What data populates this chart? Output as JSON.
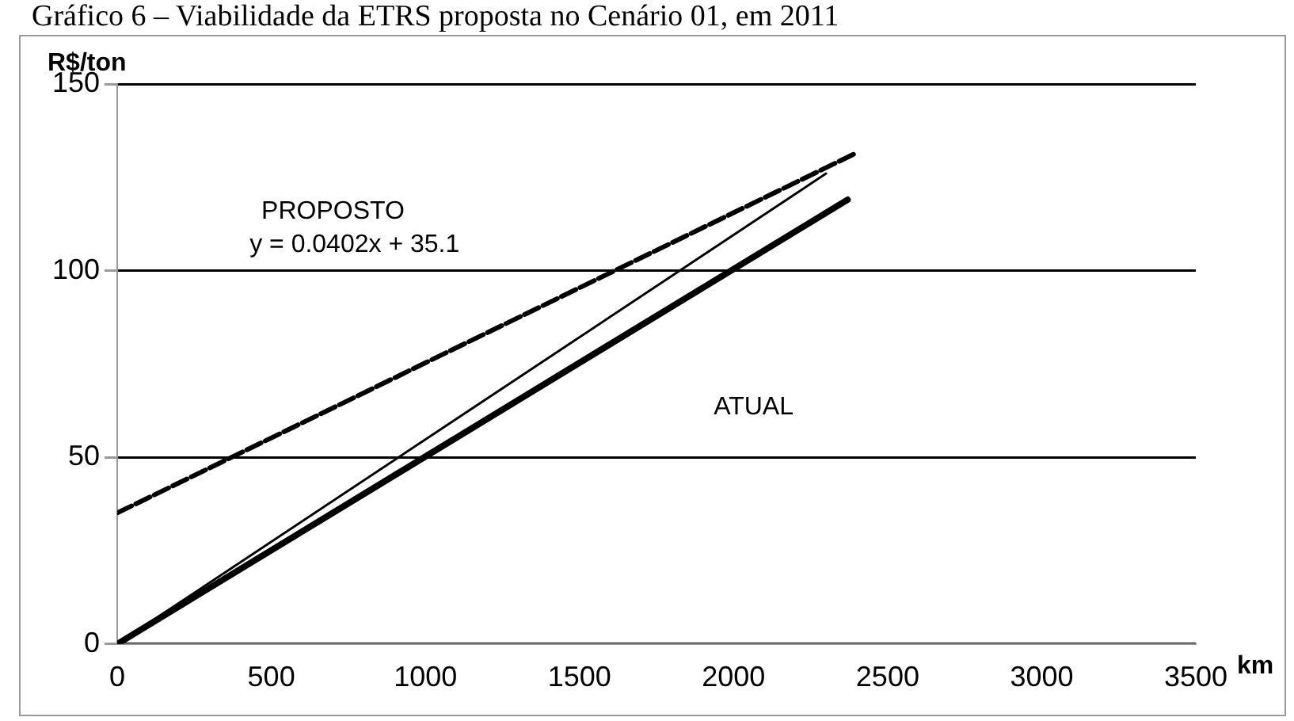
{
  "chart_data": {
    "type": "line",
    "title": "Gráfico 6 – Viabilidade da ETRS proposta no Cenário 01, em 2011",
    "xlabel": "km",
    "ylabel": "R$/ton",
    "series": [
      {
        "color": "#000000",
        "x": [
          0,
          2400
        ],
        "values": [
          35.1,
          131.6
        ],
        "line_style": "dashed"
      },
      {
        "color": "#000000",
        "x": [
          0,
          2300
        ],
        "values": [
          0,
          126
        ]
      },
      {
        "color": "#000000",
        "x": [
          0,
          2370
        ],
        "values": [
          0,
          119
        ]
      }
    ],
    "xlim": [
      0,
      3500
    ],
    "xticks": [
      0,
      500,
      1000,
      1500,
      2000,
      2500,
      3000,
      3500
    ],
    "ylim": [
      0,
      150
    ],
    "yticks": [
      0,
      50,
      100,
      150
    ],
    "grid": "y",
    "legend": false,
    "marker": "none",
    "annotations": [
      "PROPOSTO",
      "y = 0.0402x + 35.1",
      "ATUAL"
    ]
  }
}
